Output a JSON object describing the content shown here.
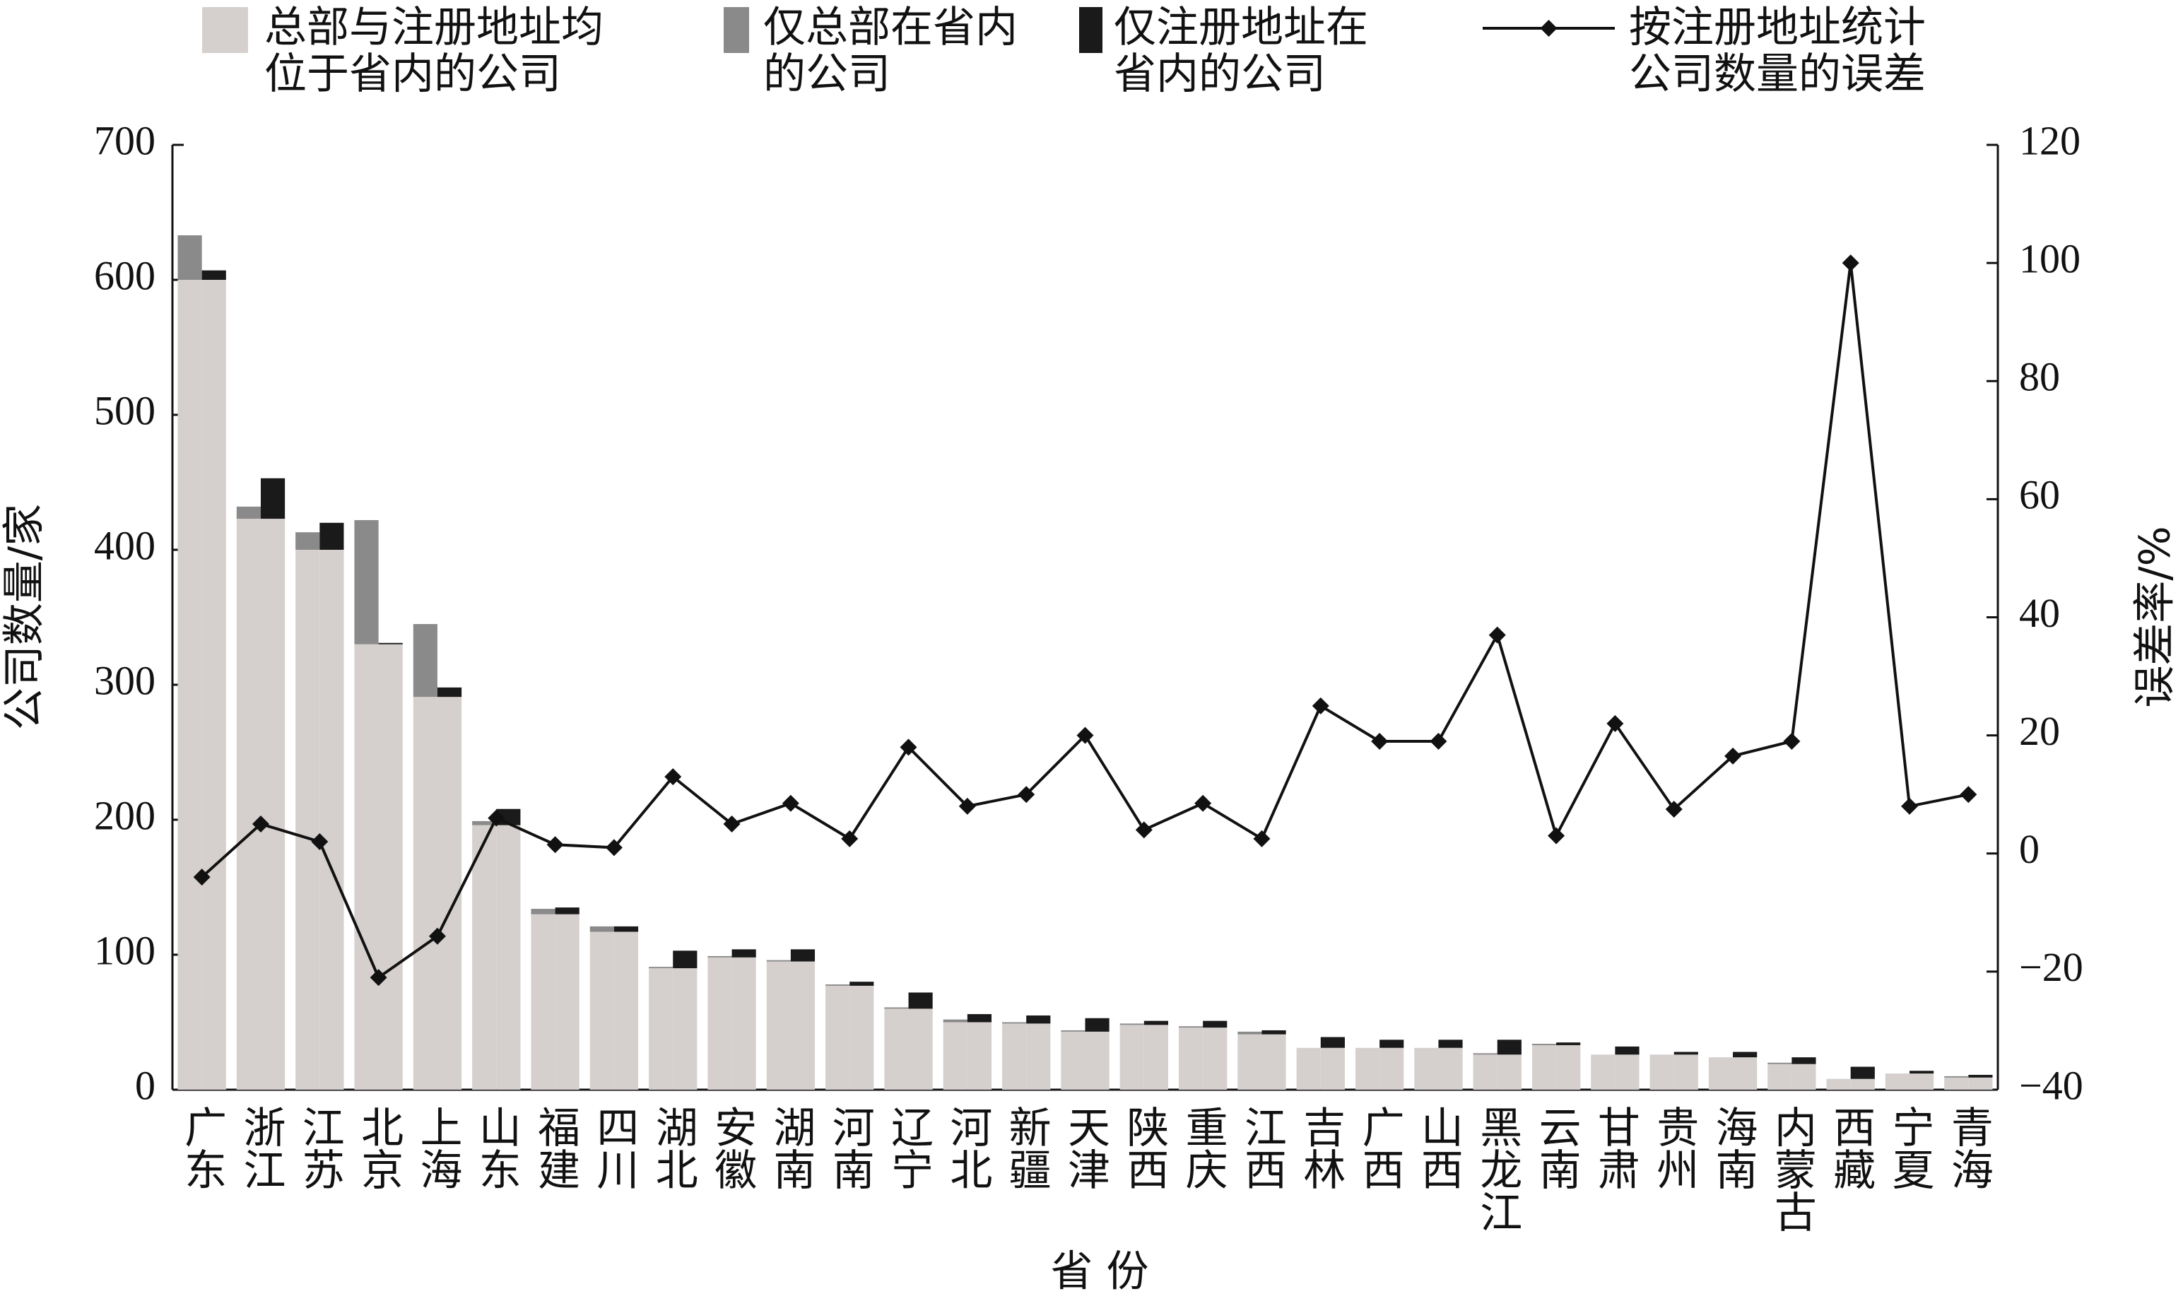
{
  "chart_data": {
    "type": "bar",
    "x_label": "省 份",
    "y_label": "公司数量/家",
    "y2_label": "误差率/%",
    "categories": [
      "广东",
      "浙江",
      "江苏",
      "北京",
      "上海",
      "山东",
      "福建",
      "四川",
      "湖北",
      "安徽",
      "湖南",
      "河南",
      "辽宁",
      "河北",
      "新疆",
      "天津",
      "陕西",
      "重庆",
      "江西",
      "吉林",
      "广西",
      "山西",
      "黑龙江",
      "云南",
      "甘肃",
      "贵州",
      "海南",
      "内蒙古",
      "西藏",
      "宁夏",
      "青海"
    ],
    "series": [
      {
        "name": "总部与注册地址均位于省内的公司",
        "color": "#d5d0ce",
        "values": [
          600,
          423,
          400,
          330,
          291,
          196,
          130,
          117,
          90,
          98,
          95,
          77,
          60,
          50,
          49,
          43,
          48,
          46,
          41,
          31,
          31,
          31,
          26,
          33,
          26,
          26,
          24,
          19,
          8,
          12,
          9
        ]
      },
      {
        "name": "仅总部在省内的公司",
        "color": "#8a8a8a",
        "values": [
          33,
          9,
          13,
          92,
          54,
          3,
          4,
          4,
          1,
          1,
          1,
          1,
          1,
          2,
          1,
          1,
          1,
          1,
          2,
          0,
          0,
          0,
          1,
          1,
          0,
          0,
          0,
          1,
          0,
          0,
          1
        ]
      },
      {
        "name": "仅注册地址在省内的公司",
        "color": "#1a1a1a",
        "values": [
          7,
          30,
          20,
          1,
          7,
          12,
          5,
          4,
          13,
          6,
          9,
          3,
          12,
          6,
          6,
          10,
          3,
          5,
          3,
          8,
          6,
          6,
          11,
          2,
          6,
          2,
          4,
          5,
          9,
          2,
          2
        ]
      },
      {
        "name": "按注册地址统计公司数量的误差",
        "type": "line",
        "axis": "y2",
        "color": "#111111",
        "values": [
          -4,
          5,
          2,
          -21,
          -14,
          6,
          1.5,
          1,
          13,
          5,
          8.5,
          2.5,
          18,
          8,
          10,
          20,
          4,
          8.5,
          2.5,
          25,
          19,
          19,
          37,
          3,
          22,
          7.5,
          16.5,
          19,
          100,
          8,
          10
        ]
      }
    ],
    "ylim": [
      0,
      700
    ],
    "yticks": [
      0,
      100,
      200,
      300,
      400,
      500,
      600,
      700
    ],
    "y2lim": [
      -40,
      120
    ],
    "y2ticks": [
      {
        "value": -40,
        "label": "−40"
      },
      {
        "value": -20,
        "label": "−20"
      },
      0,
      20,
      40,
      60,
      80,
      100,
      120
    ]
  }
}
